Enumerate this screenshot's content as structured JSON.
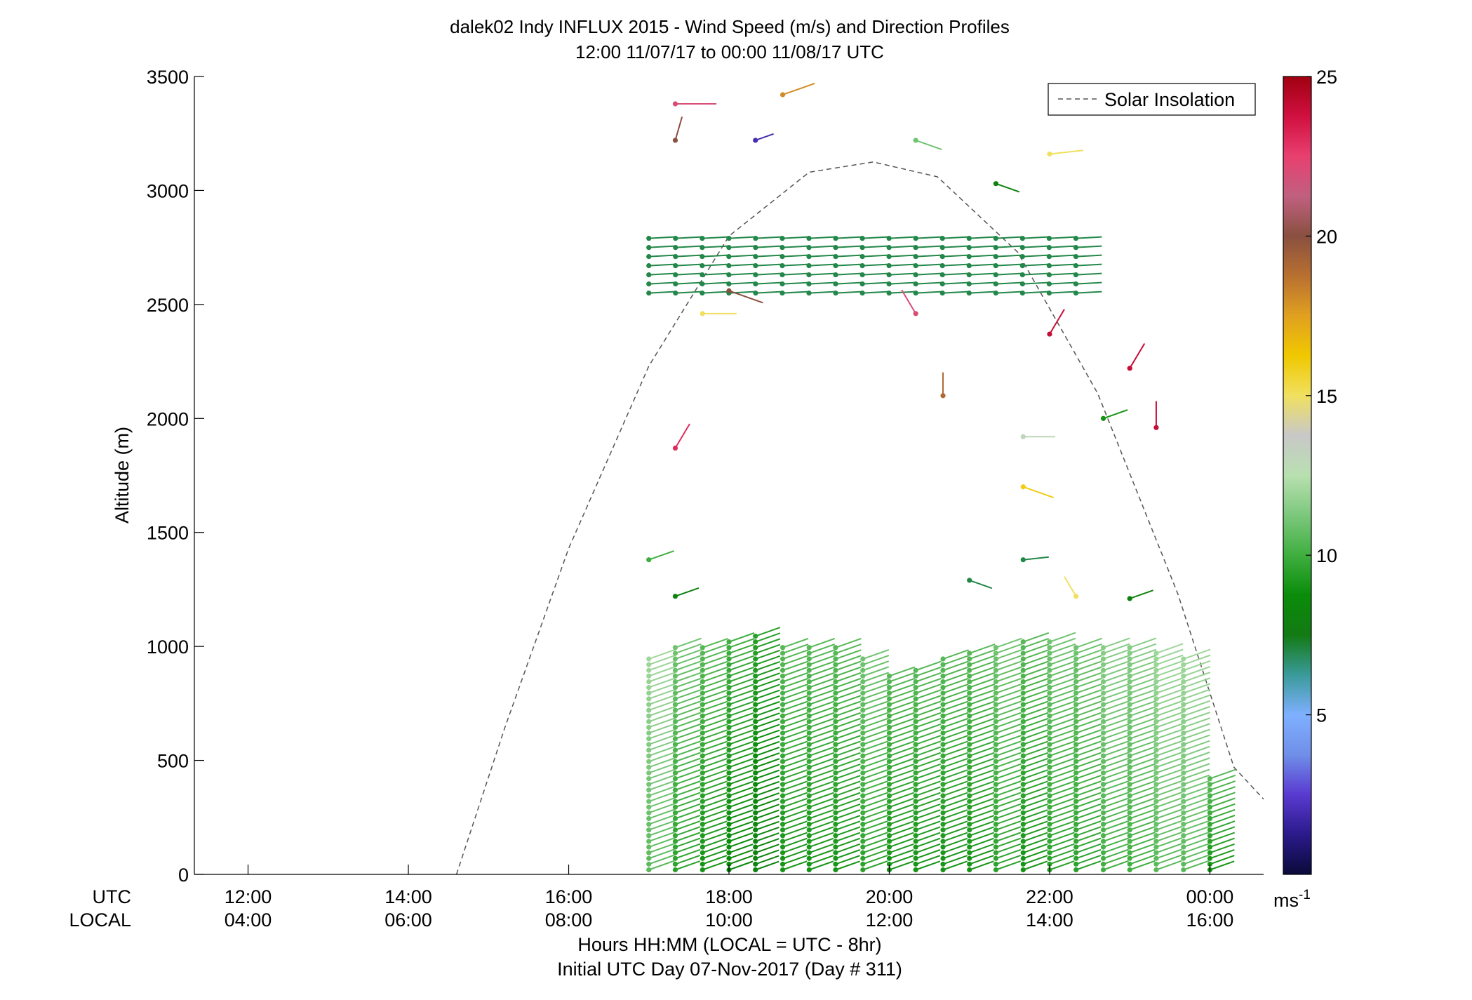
{
  "chart_data": {
    "type": "scatter",
    "title": "dalek02 Indy INFLUX 2015 - Wind Speed (m/s) and Direction Profiles",
    "subtitle": "12:00 11/07/17 to 00:00 11/08/17  UTC",
    "ylabel": "Altitude (m)",
    "xlabel": "Hours HH:MM  (LOCAL = UTC - 8hr)",
    "xlabel2": "Initial UTC Day 07-Nov-2017 (Day # 311)",
    "x_row_labels": [
      "UTC",
      "LOCAL"
    ],
    "xlim": [
      11.33,
      24.67
    ],
    "ylim": [
      0,
      3500
    ],
    "y_ticks": [
      0,
      500,
      1000,
      1500,
      2000,
      2500,
      3000,
      3500
    ],
    "x_ticks_utc": [
      "12:00",
      "14:00",
      "16:00",
      "18:00",
      "20:00",
      "22:00",
      "00:00"
    ],
    "x_ticks_local": [
      "04:00",
      "06:00",
      "08:00",
      "10:00",
      "12:00",
      "14:00",
      "16:00"
    ],
    "x_tick_hours": [
      12,
      14,
      16,
      18,
      20,
      22,
      24
    ],
    "legend": {
      "label": "Solar Insolation",
      "placement": "top-right"
    },
    "solar_insolation": {
      "x": [
        14.6,
        15.2,
        16.0,
        17.0,
        18.0,
        19.0,
        19.8,
        20.6,
        21.6,
        22.6,
        23.6,
        24.3,
        24.67
      ],
      "y": [
        0,
        640,
        1430,
        2230,
        2800,
        3080,
        3125,
        3060,
        2730,
        2110,
        1230,
        470,
        330
      ]
    },
    "colorbar": {
      "ticks": [
        5,
        10,
        15,
        20,
        25
      ],
      "unit": "ms",
      "unit_exp": "-1",
      "range": [
        0,
        25
      ],
      "colors": [
        "#0a0a3a",
        "#2a1a8a",
        "#5a3ad0",
        "#6f8fe8",
        "#7fb0ff",
        "#3a9a9a",
        "#137a13",
        "#0a8c0a",
        "#3fae3f",
        "#7cc87c",
        "#b8e0b0",
        "#c8c8c8",
        "#f0e060",
        "#f0c800",
        "#e0a020",
        "#b87030",
        "#8a5040",
        "#c06080",
        "#e84070",
        "#d01040",
        "#a00010"
      ]
    },
    "profiles": [
      {
        "t": 17.0,
        "low_max": 950,
        "low_speed": 10.5,
        "dir": 240
      },
      {
        "t": 17.33,
        "low_max": 1000,
        "low_speed": 9.5,
        "dir": 240
      },
      {
        "t": 17.67,
        "low_max": 1000,
        "low_speed": 9,
        "dir": 240
      },
      {
        "t": 18.0,
        "low_max": 1020,
        "low_speed": 8.5,
        "dir": 240
      },
      {
        "t": 18.33,
        "low_max": 1050,
        "low_speed": 8,
        "dir": 240
      },
      {
        "t": 18.67,
        "low_max": 1000,
        "low_speed": 9,
        "dir": 240
      },
      {
        "t": 19.0,
        "low_max": 1000,
        "low_speed": 9,
        "dir": 240
      },
      {
        "t": 19.33,
        "low_max": 1000,
        "low_speed": 9,
        "dir": 240
      },
      {
        "t": 19.67,
        "low_max": 960,
        "low_speed": 9.5,
        "dir": 240
      },
      {
        "t": 20.0,
        "low_max": 880,
        "low_speed": 9,
        "dir": 240
      },
      {
        "t": 20.33,
        "low_max": 900,
        "low_speed": 9,
        "dir": 240
      },
      {
        "t": 20.67,
        "low_max": 950,
        "low_speed": 9,
        "dir": 240
      },
      {
        "t": 21.0,
        "low_max": 980,
        "low_speed": 9,
        "dir": 240
      },
      {
        "t": 21.33,
        "low_max": 1000,
        "low_speed": 9.5,
        "dir": 240
      },
      {
        "t": 21.67,
        "low_max": 1020,
        "low_speed": 9,
        "dir": 240
      },
      {
        "t": 22.0,
        "low_max": 1020,
        "low_speed": 9.5,
        "dir": 240
      },
      {
        "t": 22.33,
        "low_max": 1010,
        "low_speed": 9.5,
        "dir": 240
      },
      {
        "t": 22.67,
        "low_max": 1000,
        "low_speed": 10,
        "dir": 240
      },
      {
        "t": 23.0,
        "low_max": 1000,
        "low_speed": 10,
        "dir": 240
      },
      {
        "t": 23.33,
        "low_max": 980,
        "low_speed": 10.5,
        "dir": 240
      },
      {
        "t": 23.67,
        "low_max": 950,
        "low_speed": 10.5,
        "dir": 240
      },
      {
        "t": 24.0,
        "low_max": 420,
        "low_speed": 9,
        "dir": 240
      }
    ],
    "upper_layer": {
      "t_start": 17.0,
      "t_end": 22.33,
      "alt_min": 2550,
      "alt_max": 2800,
      "speed": 7,
      "dir": 265
    },
    "scattered_points": [
      {
        "t": 17.33,
        "alt": 3380,
        "speed": 22,
        "dir": 270
      },
      {
        "t": 17.33,
        "alt": 3220,
        "speed": 20,
        "dir": 190
      },
      {
        "t": 18.67,
        "alt": 3420,
        "speed": 18,
        "dir": 240
      },
      {
        "t": 18.33,
        "alt": 3220,
        "speed": 2,
        "dir": 240
      },
      {
        "t": 20.33,
        "alt": 3220,
        "speed": 11,
        "dir": 300
      },
      {
        "t": 21.33,
        "alt": 3030,
        "speed": 8,
        "dir": 300
      },
      {
        "t": 22.0,
        "alt": 3160,
        "speed": 15,
        "dir": 260
      },
      {
        "t": 17.33,
        "alt": 1870,
        "speed": 23,
        "dir": 200
      },
      {
        "t": 20.67,
        "alt": 2100,
        "speed": 19,
        "dir": 180
      },
      {
        "t": 22.0,
        "alt": 2370,
        "speed": 24,
        "dir": 200
      },
      {
        "t": 21.67,
        "alt": 1920,
        "speed": 13,
        "dir": 270
      },
      {
        "t": 21.67,
        "alt": 1700,
        "speed": 16,
        "dir": 300
      },
      {
        "t": 23.33,
        "alt": 1960,
        "speed": 24,
        "dir": 180
      },
      {
        "t": 22.67,
        "alt": 2000,
        "speed": 9,
        "dir": 240
      },
      {
        "t": 20.33,
        "alt": 2460,
        "speed": 22,
        "dir": 160
      },
      {
        "t": 23.0,
        "alt": 2220,
        "speed": 24,
        "dir": 200
      },
      {
        "t": 17.0,
        "alt": 1380,
        "speed": 10,
        "dir": 240
      },
      {
        "t": 17.33,
        "alt": 1220,
        "speed": 8,
        "dir": 240
      },
      {
        "t": 21.0,
        "alt": 1290,
        "speed": 7,
        "dir": 300
      },
      {
        "t": 21.67,
        "alt": 1380,
        "speed": 7,
        "dir": 260
      },
      {
        "t": 22.33,
        "alt": 1220,
        "speed": 15,
        "dir": 160
      },
      {
        "t": 23.0,
        "alt": 1210,
        "speed": 8,
        "dir": 240
      },
      {
        "t": 17.67,
        "alt": 2460,
        "speed": 15,
        "dir": 270
      },
      {
        "t": 18.0,
        "alt": 2560,
        "speed": 20,
        "dir": 300
      }
    ]
  }
}
